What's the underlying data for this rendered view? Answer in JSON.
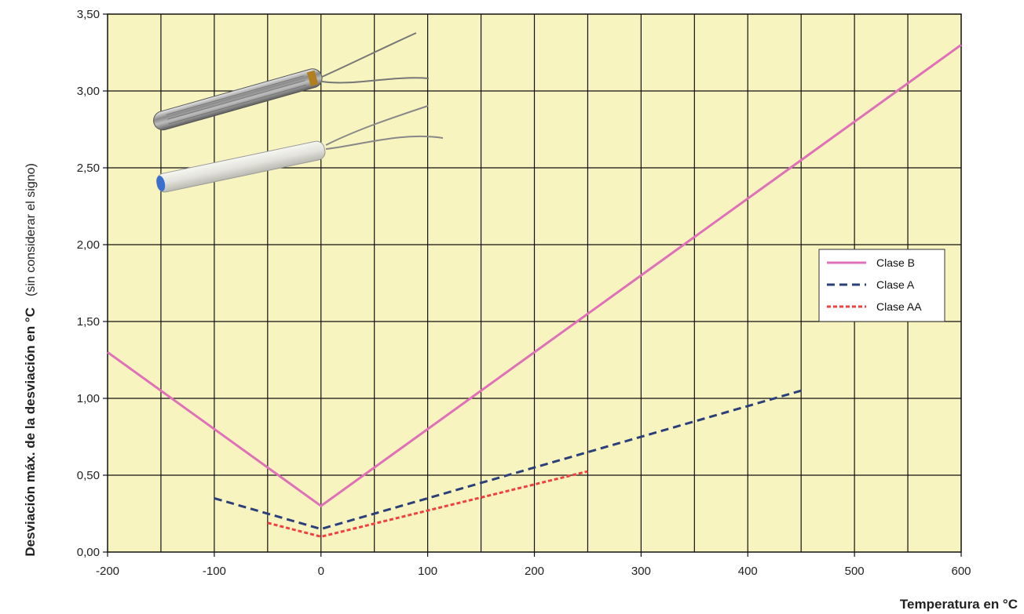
{
  "chart_data": {
    "type": "line",
    "xlabel": "Temperatura en °C",
    "ylabel": "Desviación máx. de la desviación en °C",
    "ylabel_note": "(sin considerar el signo)",
    "xlim": [
      -200,
      600
    ],
    "ylim": [
      0,
      3.5
    ],
    "x_ticks": [
      -200,
      -100,
      0,
      100,
      200,
      300,
      400,
      500,
      600
    ],
    "x_tick_labels": [
      "-200",
      "-100",
      "0",
      "100",
      "200",
      "300",
      "400",
      "500",
      "600"
    ],
    "y_ticks": [
      0,
      0.5,
      1,
      1.5,
      2,
      2.5,
      3,
      3.5
    ],
    "y_tick_labels": [
      "0,00",
      "0,50",
      "1,00",
      "1,50",
      "2,00",
      "2,50",
      "3,00",
      "3,50"
    ],
    "x_grid_step": 50,
    "y_grid_step": 0.5,
    "grid": true,
    "plot_background": "#f8f4c0",
    "legend_position": "right",
    "series": [
      {
        "name": "Clase B",
        "color": "#e070b8",
        "dash": "solid",
        "x": [
          -200,
          0,
          600
        ],
        "y": [
          1.3,
          0.3,
          3.3
        ]
      },
      {
        "name": "Clase A",
        "color": "#2b3f7a",
        "dash": "dashed",
        "x": [
          -100,
          0,
          450
        ],
        "y": [
          0.35,
          0.15,
          1.05
        ]
      },
      {
        "name": "Clase AA",
        "color": "#f04040",
        "dash": "dotted",
        "x": [
          -50,
          0,
          250
        ],
        "y": [
          0.19,
          0.1,
          0.525
        ]
      }
    ]
  },
  "image": {
    "description": "two RTD temperature probe sensors with wire leads"
  }
}
